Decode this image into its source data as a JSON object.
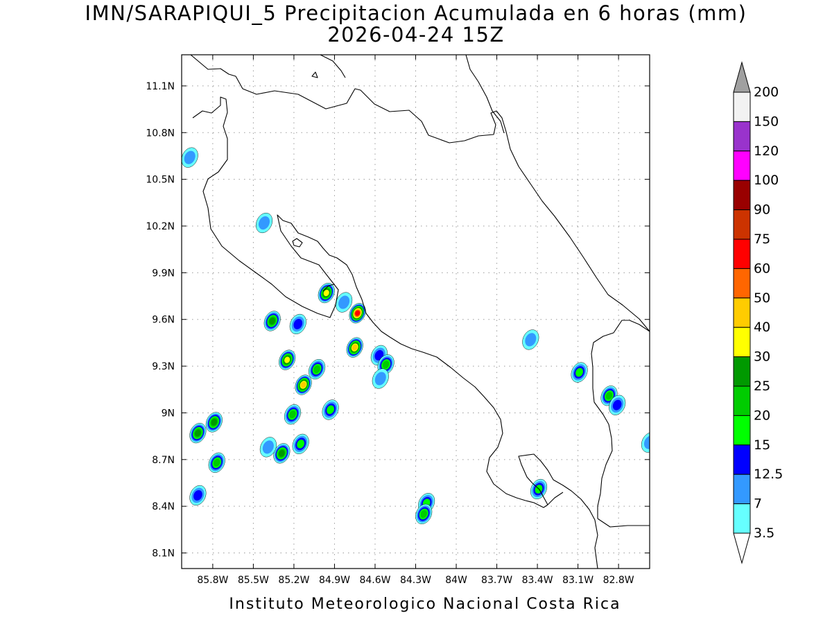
{
  "title": {
    "line1": "IMN/SARAPIQUI_5 Precipitacion Acumulada en 6 horas (mm)",
    "line2": "2026-04-24 15Z"
  },
  "footer": "Instituto Meteorologico Nacional Costa Rica",
  "map": {
    "lon_range": [
      -86.03,
      -82.57
    ],
    "lat_range": [
      8.0,
      11.3
    ],
    "x_ticks": [
      "85.8W",
      "85.5W",
      "85.2W",
      "84.9W",
      "84.6W",
      "84.3W",
      "84W",
      "83.7W",
      "83.4W",
      "83.1W",
      "82.8W"
    ],
    "y_ticks": [
      "11.1N",
      "10.8N",
      "10.5N",
      "10.2N",
      "9.9N",
      "9.6N",
      "9.3N",
      "9N",
      "8.7N",
      "8.4N",
      "8.1N"
    ]
  },
  "colorbar": {
    "labels": [
      "200",
      "150",
      "120",
      "100",
      "90",
      "75",
      "60",
      "50",
      "40",
      "30",
      "25",
      "20",
      "15",
      "12.5",
      "7",
      "3.5"
    ],
    "colors": [
      "#f2f2f2",
      "#9933cc",
      "#ff00ff",
      "#990000",
      "#cc3300",
      "#ff0000",
      "#ff6600",
      "#ffcc00",
      "#ffff00",
      "#009900",
      "#00cc00",
      "#00ff00",
      "#0000ff",
      "#3399ff",
      "#66ffff"
    ],
    "over_color": "#a0a0a0",
    "under_color": "#ffffff"
  },
  "precip_cells": [
    {
      "lon": -84.73,
      "lat": 9.64,
      "max": 60
    },
    {
      "lon": -84.75,
      "lat": 9.42,
      "max": 40
    },
    {
      "lon": -85.13,
      "lat": 9.18,
      "max": 40
    },
    {
      "lon": -85.25,
      "lat": 9.34,
      "max": 30
    },
    {
      "lon": -84.96,
      "lat": 9.77,
      "max": 30
    },
    {
      "lon": -85.36,
      "lat": 9.59,
      "max": 25
    },
    {
      "lon": -85.79,
      "lat": 8.94,
      "max": 25
    },
    {
      "lon": -85.91,
      "lat": 8.87,
      "max": 25
    },
    {
      "lon": -85.29,
      "lat": 8.74,
      "max": 25
    },
    {
      "lon": -85.03,
      "lat": 9.28,
      "max": 20
    },
    {
      "lon": -85.77,
      "lat": 8.68,
      "max": 20
    },
    {
      "lon": -85.21,
      "lat": 8.99,
      "max": 20
    },
    {
      "lon": -83.09,
      "lat": 9.26,
      "max": 15
    },
    {
      "lon": -82.87,
      "lat": 9.11,
      "max": 20
    },
    {
      "lon": -84.22,
      "lat": 8.42,
      "max": 15
    },
    {
      "lon": -84.24,
      "lat": 8.35,
      "max": 20
    },
    {
      "lon": -85.15,
      "lat": 8.8,
      "max": 15
    },
    {
      "lon": -84.93,
      "lat": 9.02,
      "max": 15
    },
    {
      "lon": -85.17,
      "lat": 9.57,
      "max": 12.5
    },
    {
      "lon": -84.57,
      "lat": 9.37,
      "max": 12.5
    },
    {
      "lon": -84.52,
      "lat": 9.31,
      "max": 20
    },
    {
      "lon": -83.39,
      "lat": 8.51,
      "max": 15
    },
    {
      "lon": -82.81,
      "lat": 9.05,
      "max": 12.5
    },
    {
      "lon": -85.91,
      "lat": 8.47,
      "max": 12.5
    },
    {
      "lon": -85.42,
      "lat": 10.22,
      "max": 7
    },
    {
      "lon": -85.97,
      "lat": 10.64,
      "max": 7
    },
    {
      "lon": -85.39,
      "lat": 8.78,
      "max": 7
    },
    {
      "lon": -84.56,
      "lat": 9.22,
      "max": 7
    },
    {
      "lon": -83.45,
      "lat": 9.47,
      "max": 7
    },
    {
      "lon": -84.83,
      "lat": 9.71,
      "max": 7
    },
    {
      "lon": -82.57,
      "lat": 8.81,
      "max": 7
    }
  ]
}
